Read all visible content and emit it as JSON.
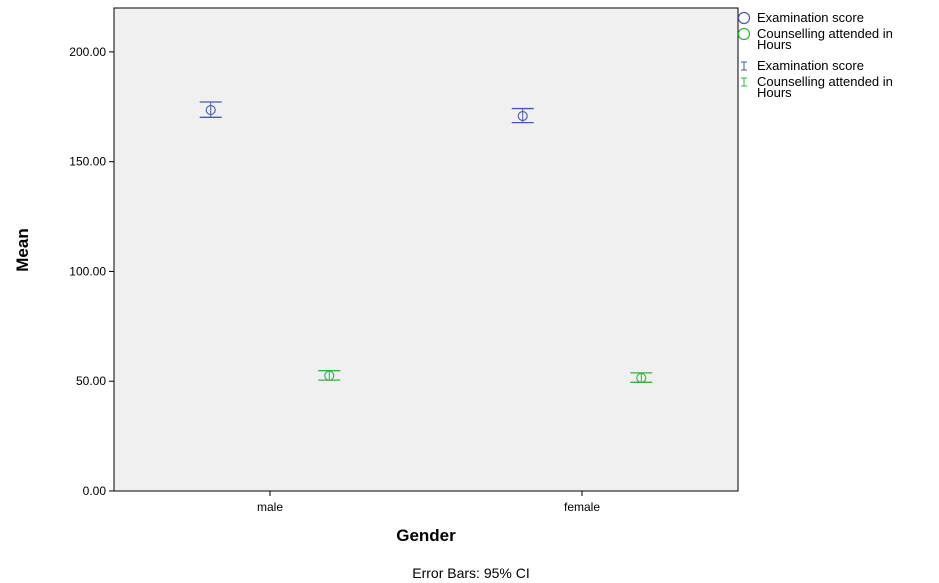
{
  "chart_data": {
    "type": "error_bar",
    "xlabel": "Gender",
    "ylabel": "Mean",
    "footnote": "Error Bars: 95% CI",
    "ylim": [
      0,
      220
    ],
    "yticks": [
      "0.00",
      "50.00",
      "100.00",
      "150.00",
      "200.00"
    ],
    "categories": [
      "male",
      "female"
    ],
    "series": [
      {
        "name": "Examination score",
        "color": "#4a5aa8",
        "mean": [
          173.5,
          170.8
        ],
        "ci_lower": [
          170.2,
          167.8
        ],
        "ci_upper": [
          177.2,
          174.2
        ]
      },
      {
        "name": "Counselling attended in Hours",
        "color": "#33b33b",
        "mean": [
          52.5,
          51.5
        ],
        "ci_lower": [
          50.5,
          49.5
        ],
        "ci_upper": [
          54.8,
          53.8
        ]
      }
    ],
    "legend": {
      "placement": "right",
      "entries": [
        {
          "symbol": "circle",
          "label": "Examination score",
          "series": 0
        },
        {
          "symbol": "circle",
          "label": "Counselling attended in Hours",
          "series": 1
        },
        {
          "symbol": "errorbar",
          "label": "Examination score",
          "series": 0
        },
        {
          "symbol": "errorbar",
          "label": "Counselling attended in Hours",
          "series": 1
        }
      ]
    },
    "background": "#f0f0f0",
    "grid": false
  }
}
